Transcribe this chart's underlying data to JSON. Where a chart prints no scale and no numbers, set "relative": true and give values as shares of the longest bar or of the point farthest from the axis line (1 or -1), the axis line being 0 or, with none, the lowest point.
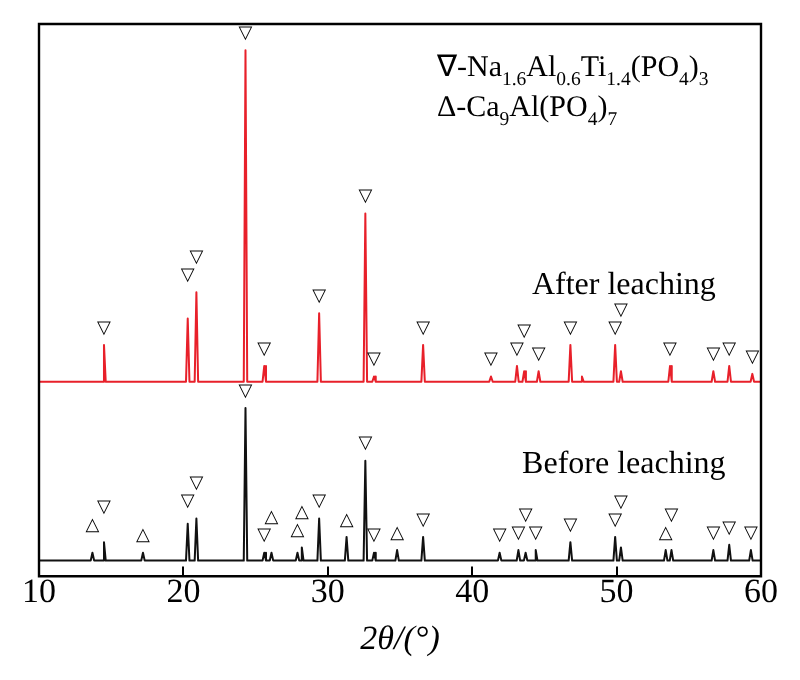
{
  "chart_data": {
    "type": "line",
    "relative": true,
    "xlabel": "2θ/(°)",
    "xlim": [
      10,
      60
    ],
    "xticks": [
      10,
      20,
      30,
      40,
      50,
      60
    ],
    "grid": false,
    "legend": false,
    "marker": "none",
    "line_style": "solid",
    "series": [
      {
        "name": "After leaching",
        "color": "#e8202a",
        "x": [
          10,
          14.38,
          14.5,
          14.62,
          20.18,
          20.3,
          20.42,
          20.78,
          20.9,
          21.02,
          24.18,
          24.3,
          24.42,
          25.48,
          25.6,
          25.72,
          29.28,
          29.4,
          29.52,
          32.48,
          32.6,
          32.72,
          33.08,
          33.2,
          33.32,
          36.48,
          36.6,
          36.72,
          41.18,
          41.3,
          41.42,
          42.98,
          43.1,
          43.22,
          43.48,
          43.6,
          43.72,
          44.48,
          44.6,
          44.72,
          46.68,
          46.8,
          46.92,
          47.48,
          47.6,
          47.72,
          49.78,
          49.9,
          50.02,
          50.18,
          50.3,
          50.42,
          53.58,
          53.7,
          53.82,
          56.58,
          56.7,
          56.82,
          57.68,
          57.8,
          57.92,
          59.28,
          59.4,
          59.52,
          60
        ],
        "values": [
          0.37,
          0.37,
          0.44,
          0.37,
          0.37,
          0.49,
          0.37,
          0.37,
          0.54,
          0.37,
          0.37,
          1.0,
          0.37,
          0.37,
          0.4,
          0.37,
          0.37,
          0.5,
          0.37,
          0.37,
          0.69,
          0.37,
          0.37,
          0.38,
          0.37,
          0.37,
          0.44,
          0.37,
          0.37,
          0.38,
          0.37,
          0.37,
          0.4,
          0.37,
          0.37,
          0.39,
          0.37,
          0.37,
          0.39,
          0.37,
          0.37,
          0.44,
          0.37,
          0.37,
          0.38,
          0.37,
          0.37,
          0.44,
          0.37,
          0.37,
          0.39,
          0.37,
          0.37,
          0.4,
          0.37,
          0.37,
          0.39,
          0.37,
          0.37,
          0.4,
          0.37,
          0.37,
          0.385,
          0.37,
          0.37
        ]
      },
      {
        "name": "Before leaching",
        "color": "#111111",
        "x": [
          10,
          13.58,
          13.7,
          13.82,
          14.38,
          14.5,
          14.62,
          17.08,
          17.2,
          17.32,
          20.18,
          20.3,
          20.42,
          20.78,
          20.9,
          21.02,
          24.18,
          24.3,
          24.42,
          25.48,
          25.6,
          25.72,
          25.98,
          26.1,
          26.22,
          27.78,
          27.9,
          28.02,
          28.08,
          28.2,
          28.32,
          29.28,
          29.4,
          29.52,
          31.18,
          31.3,
          31.42,
          32.48,
          32.6,
          32.72,
          33.08,
          33.2,
          33.32,
          34.68,
          34.8,
          34.92,
          36.48,
          36.6,
          36.72,
          41.78,
          41.9,
          42.02,
          43.08,
          43.2,
          43.32,
          43.58,
          43.7,
          43.82,
          44.28,
          44.4,
          44.52,
          46.68,
          46.8,
          46.92,
          49.78,
          49.9,
          50.02,
          50.18,
          50.3,
          50.42,
          53.28,
          53.4,
          53.52,
          53.68,
          53.8,
          53.92,
          56.58,
          56.7,
          56.82,
          57.68,
          57.8,
          57.92,
          59.18,
          59.3,
          59.42,
          60
        ],
        "values": [
          0.03,
          0.03,
          0.045,
          0.03,
          0.03,
          0.065,
          0.03,
          0.03,
          0.045,
          0.03,
          0.03,
          0.1,
          0.03,
          0.03,
          0.11,
          0.03,
          0.03,
          0.32,
          0.03,
          0.03,
          0.045,
          0.03,
          0.03,
          0.045,
          0.03,
          0.03,
          0.045,
          0.03,
          0.03,
          0.055,
          0.03,
          0.03,
          0.11,
          0.03,
          0.03,
          0.075,
          0.03,
          0.03,
          0.22,
          0.03,
          0.03,
          0.045,
          0.03,
          0.03,
          0.05,
          0.03,
          0.03,
          0.075,
          0.03,
          0.03,
          0.045,
          0.03,
          0.03,
          0.05,
          0.03,
          0.03,
          0.045,
          0.03,
          0.03,
          0.05,
          0.03,
          0.03,
          0.065,
          0.03,
          0.03,
          0.075,
          0.03,
          0.03,
          0.055,
          0.03,
          0.03,
          0.05,
          0.03,
          0.03,
          0.05,
          0.03,
          0.03,
          0.05,
          0.03,
          0.03,
          0.06,
          0.03,
          0.03,
          0.05,
          0.03,
          0.03
        ]
      }
    ],
    "annotations": [
      "∇-Na$_{1.6}$Al$_{0.6}$Ti$_{1.4}$(PO$_{4}$)$_{3}$",
      "Δ-Ca$_{9}$Al(PO$_{4}$)$_{7}$",
      {
        "text": "▽",
        "x": 14.5,
        "y": 0.44
      },
      {
        "text": "▽",
        "x": 20.3,
        "y": 0.49
      },
      {
        "text": "▽",
        "x": 20.9,
        "y": 0.54
      },
      {
        "text": "▽",
        "x": 24.3,
        "y": 1.0
      },
      {
        "text": "▽",
        "x": 25.6,
        "y": 0.4
      },
      {
        "text": "▽",
        "x": 29.4,
        "y": 0.5
      },
      {
        "text": "▽",
        "x": 32.6,
        "y": 0.69
      },
      {
        "text": "▽",
        "x": 33.2,
        "y": 0.38
      },
      {
        "text": "▽",
        "x": 36.6,
        "y": 0.44
      },
      {
        "text": "▽",
        "x": 41.3,
        "y": 0.38
      },
      {
        "text": "▽",
        "x": 43.1,
        "y": 0.4
      },
      {
        "text": "▽",
        "x": 43.6,
        "y": 0.39
      },
      {
        "text": "▽",
        "x": 44.6,
        "y": 0.39
      },
      {
        "text": "▽",
        "x": 46.8,
        "y": 0.44
      },
      {
        "text": "▽",
        "x": 49.9,
        "y": 0.44
      },
      {
        "text": "▽",
        "x": 50.3,
        "y": 0.39
      },
      {
        "text": "▽",
        "x": 53.7,
        "y": 0.4
      },
      {
        "text": "▽",
        "x": 56.7,
        "y": 0.39
      },
      {
        "text": "▽",
        "x": 57.8,
        "y": 0.4
      },
      {
        "text": "▽",
        "x": 59.4,
        "y": 0.385
      },
      {
        "text": "△",
        "x": 13.7,
        "y": 0.045
      },
      {
        "text": "▽",
        "x": 14.5,
        "y": 0.065
      },
      {
        "text": "△",
        "x": 17.2,
        "y": 0.045
      },
      {
        "text": "▽",
        "x": 20.3,
        "y": 0.1
      },
      {
        "text": "▽",
        "x": 20.9,
        "y": 0.11
      },
      {
        "text": "▽",
        "x": 24.3,
        "y": 0.32
      },
      {
        "text": "▽",
        "x": 25.6,
        "y": 0.045
      },
      {
        "text": "△",
        "x": 26.1,
        "y": 0.045
      },
      {
        "text": "△",
        "x": 27.9,
        "y": 0.045
      },
      {
        "text": "△",
        "x": 28.2,
        "y": 0.055
      },
      {
        "text": "▽",
        "x": 29.4,
        "y": 0.11
      },
      {
        "text": "△",
        "x": 31.3,
        "y": 0.075
      },
      {
        "text": "▽",
        "x": 32.6,
        "y": 0.22
      },
      {
        "text": "▽",
        "x": 33.2,
        "y": 0.045
      },
      {
        "text": "△",
        "x": 34.8,
        "y": 0.05
      },
      {
        "text": "▽",
        "x": 36.6,
        "y": 0.075
      },
      {
        "text": "▽",
        "x": 41.9,
        "y": 0.045
      },
      {
        "text": "▽",
        "x": 43.2,
        "y": 0.05
      },
      {
        "text": "▽",
        "x": 43.7,
        "y": 0.045
      },
      {
        "text": "▽",
        "x": 44.4,
        "y": 0.05
      },
      {
        "text": "▽",
        "x": 46.8,
        "y": 0.065
      },
      {
        "text": "▽",
        "x": 49.9,
        "y": 0.075
      },
      {
        "text": "▽",
        "x": 50.3,
        "y": 0.055
      },
      {
        "text": "△",
        "x": 53.4,
        "y": 0.05
      },
      {
        "text": "▽",
        "x": 53.8,
        "y": 0.05
      },
      {
        "text": "▽",
        "x": 56.7,
        "y": 0.05
      },
      {
        "text": "▽",
        "x": 57.8,
        "y": 0.06
      },
      {
        "text": "▽",
        "x": 59.3,
        "y": 0.05
      }
    ]
  }
}
